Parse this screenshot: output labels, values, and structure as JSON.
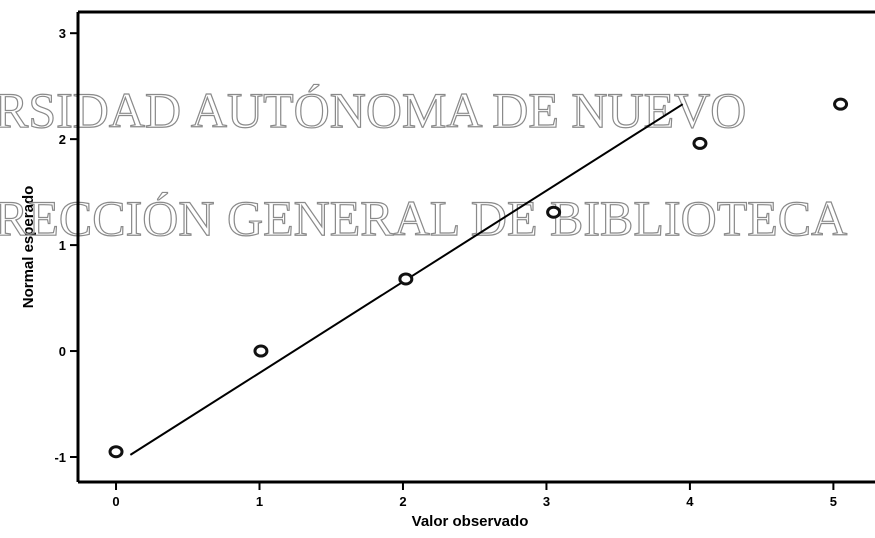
{
  "chart_data": {
    "type": "scatter",
    "xlabel": "Valor observado",
    "ylabel": "Normal esperado",
    "x": [
      0,
      1.01,
      2.02,
      3.05,
      4.07,
      5.05
    ],
    "values": [
      -0.95,
      0.0,
      0.68,
      1.31,
      1.96,
      2.33
    ],
    "color": "#111111",
    "reference_line": {
      "x": [
        0.1,
        3.95
      ],
      "y": [
        -0.98,
        2.33
      ]
    },
    "xlim": [
      -0.265,
      5.29
    ],
    "ylim": [
      -1.236,
      3.2
    ],
    "xticks": [
      0,
      1,
      2,
      3,
      4,
      5
    ],
    "yticks": [
      -1,
      0,
      1,
      2,
      3
    ],
    "watermark": [
      "RSIDAD AUTÓNOMA DE NUEVO",
      "RECCIÓN GENERAL DE BIBLIOTECA"
    ]
  }
}
